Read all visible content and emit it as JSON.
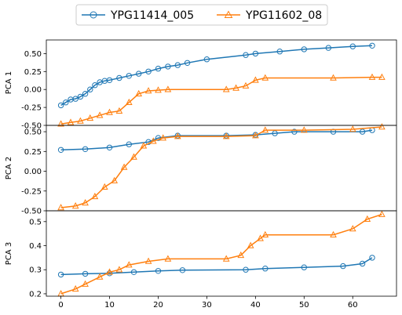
{
  "chart_data": {
    "type": "line",
    "legend": {
      "placement": "top-center",
      "entries": [
        "YPG11414_005",
        "YPG11602_08"
      ]
    },
    "colors": {
      "YPG11414_005": "#1f77b4",
      "YPG11602_08": "#ff7f0e"
    },
    "markers": {
      "YPG11414_005": "circle-open",
      "YPG11602_08": "triangle-open"
    },
    "grid": false,
    "xlim": [
      -3,
      69
    ],
    "x_ticks": [
      "0",
      "10",
      "20",
      "30",
      "40",
      "50",
      "60"
    ],
    "panels": [
      {
        "ylabel": "PCA 1",
        "ylim": [
          -0.5,
          0.69
        ],
        "y_ticks": [
          "-0.50",
          "-0.25",
          "0.00",
          "0.25",
          "0.50"
        ],
        "series": [
          {
            "name": "YPG11414_005",
            "points": [
              [
                0,
                -0.22
              ],
              [
                1,
                -0.18
              ],
              [
                2,
                -0.14
              ],
              [
                3,
                -0.13
              ],
              [
                4,
                -0.1
              ],
              [
                5,
                -0.06
              ],
              [
                6,
                0.0
              ],
              [
                7,
                0.06
              ],
              [
                8,
                0.1
              ],
              [
                9,
                0.12
              ],
              [
                10,
                0.13
              ],
              [
                12,
                0.16
              ],
              [
                14,
                0.19
              ],
              [
                16,
                0.22
              ],
              [
                18,
                0.25
              ],
              [
                20,
                0.29
              ],
              [
                22,
                0.32
              ],
              [
                24,
                0.34
              ],
              [
                26,
                0.37
              ],
              [
                30,
                0.42
              ],
              [
                38,
                0.48
              ],
              [
                40,
                0.5
              ],
              [
                45,
                0.53
              ],
              [
                50,
                0.56
              ],
              [
                55,
                0.58
              ],
              [
                60,
                0.6
              ],
              [
                64,
                0.61
              ]
            ]
          },
          {
            "name": "YPG11602_08",
            "points": [
              [
                0,
                -0.48
              ],
              [
                2,
                -0.46
              ],
              [
                4,
                -0.44
              ],
              [
                6,
                -0.4
              ],
              [
                8,
                -0.36
              ],
              [
                10,
                -0.32
              ],
              [
                12,
                -0.3
              ],
              [
                14,
                -0.18
              ],
              [
                16,
                -0.06
              ],
              [
                18,
                -0.02
              ],
              [
                20,
                -0.01
              ],
              [
                22,
                0.0
              ],
              [
                34,
                0.0
              ],
              [
                36,
                0.02
              ],
              [
                38,
                0.05
              ],
              [
                40,
                0.13
              ],
              [
                42,
                0.16
              ],
              [
                56,
                0.16
              ],
              [
                64,
                0.17
              ],
              [
                66,
                0.17
              ]
            ]
          }
        ]
      },
      {
        "ylabel": "PCA 2",
        "ylim": [
          -0.5,
          0.58
        ],
        "y_ticks": [
          "-0.50",
          "-0.25",
          "0.00",
          "0.25",
          "0.50"
        ],
        "series": [
          {
            "name": "YPG11414_005",
            "points": [
              [
                0,
                0.27
              ],
              [
                5,
                0.28
              ],
              [
                10,
                0.3
              ],
              [
                14,
                0.34
              ],
              [
                18,
                0.37
              ],
              [
                20,
                0.42
              ],
              [
                24,
                0.45
              ],
              [
                34,
                0.45
              ],
              [
                40,
                0.46
              ],
              [
                44,
                0.48
              ],
              [
                48,
                0.5
              ],
              [
                56,
                0.5
              ],
              [
                62,
                0.5
              ],
              [
                64,
                0.52
              ]
            ]
          },
          {
            "name": "YPG11602_08",
            "points": [
              [
                0,
                -0.46
              ],
              [
                3,
                -0.44
              ],
              [
                5,
                -0.4
              ],
              [
                7,
                -0.32
              ],
              [
                9,
                -0.2
              ],
              [
                11,
                -0.12
              ],
              [
                13,
                0.05
              ],
              [
                15,
                0.18
              ],
              [
                17,
                0.32
              ],
              [
                19,
                0.38
              ],
              [
                21,
                0.42
              ],
              [
                24,
                0.44
              ],
              [
                34,
                0.44
              ],
              [
                40,
                0.45
              ],
              [
                42,
                0.52
              ],
              [
                50,
                0.52
              ],
              [
                60,
                0.53
              ],
              [
                66,
                0.56
              ]
            ]
          }
        ]
      },
      {
        "ylabel": "PCA 3",
        "ylim": [
          0.19,
          0.545
        ],
        "y_ticks": [
          "0.2",
          "0.3",
          "0.4",
          "0.5"
        ],
        "series": [
          {
            "name": "YPG11414_005",
            "points": [
              [
                0,
                0.28
              ],
              [
                5,
                0.283
              ],
              [
                10,
                0.285
              ],
              [
                15,
                0.29
              ],
              [
                20,
                0.295
              ],
              [
                25,
                0.298
              ],
              [
                38,
                0.3
              ],
              [
                42,
                0.305
              ],
              [
                50,
                0.31
              ],
              [
                58,
                0.315
              ],
              [
                62,
                0.325
              ],
              [
                64,
                0.35
              ]
            ]
          },
          {
            "name": "YPG11602_08",
            "points": [
              [
                0,
                0.2
              ],
              [
                3,
                0.22
              ],
              [
                5,
                0.24
              ],
              [
                8,
                0.27
              ],
              [
                10,
                0.29
              ],
              [
                12,
                0.3
              ],
              [
                14,
                0.32
              ],
              [
                18,
                0.335
              ],
              [
                22,
                0.345
              ],
              [
                34,
                0.345
              ],
              [
                37,
                0.36
              ],
              [
                39,
                0.4
              ],
              [
                41,
                0.43
              ],
              [
                42,
                0.445
              ],
              [
                56,
                0.445
              ],
              [
                60,
                0.47
              ],
              [
                63,
                0.51
              ],
              [
                66,
                0.53
              ]
            ]
          }
        ]
      }
    ]
  }
}
